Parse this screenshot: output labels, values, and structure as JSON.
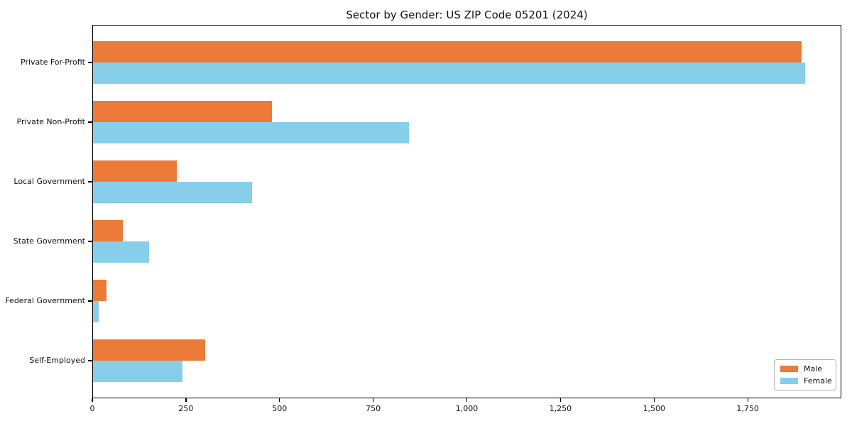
{
  "chart_data": {
    "type": "bar",
    "orientation": "horizontal",
    "title": "Sector by Gender: US ZIP Code 05201 (2024)",
    "categories": [
      "Private For-Profit",
      "Private Non-Profit",
      "Local Government",
      "State Government",
      "Federal Government",
      "Self-Employed"
    ],
    "series": [
      {
        "name": "Male",
        "color": "#ec7a38",
        "values": [
          1895,
          478,
          224,
          80,
          36,
          300
        ]
      },
      {
        "name": "Female",
        "color": "#87ceeb",
        "values": [
          1905,
          845,
          425,
          150,
          15,
          240
        ]
      }
    ],
    "xlabel": "",
    "ylabel": "",
    "xlim": [
      0,
      2000
    ],
    "xticks": [
      0,
      250,
      500,
      750,
      1000,
      1250,
      1500,
      1750
    ],
    "xtick_labels": [
      "0",
      "250",
      "500",
      "750",
      "1,000",
      "1,250",
      "1,500",
      "1,750"
    ],
    "grid": false,
    "legend": {
      "position": "lower right",
      "entries": [
        "Male",
        "Female"
      ]
    },
    "colors": {
      "axis": "#000000",
      "text": "#111111",
      "legend_border": "#b4b4b4",
      "background": "#ffffff"
    }
  }
}
